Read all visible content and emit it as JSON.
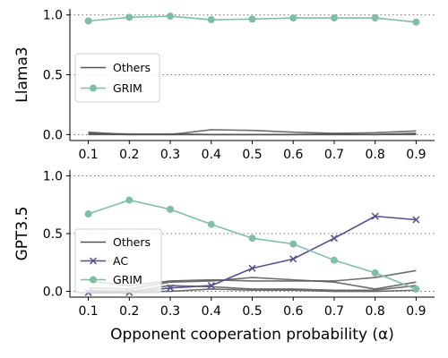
{
  "chart_data": [
    {
      "type": "line",
      "ylabel": "Llama3",
      "xlabel": "",
      "x": [
        0.1,
        0.2,
        0.3,
        0.4,
        0.5,
        0.6,
        0.7,
        0.8,
        0.9
      ],
      "x_tick_labels": [
        "0.1",
        "0.2",
        "0.3",
        "0.4",
        "0.5",
        "0.6",
        "0.7",
        "0.8",
        "0.9"
      ],
      "ylim": [
        -0.05,
        1.05
      ],
      "y_ticks": [
        0.0,
        0.5,
        1.0
      ],
      "y_tick_labels": [
        "0.0",
        "0.5",
        "1.0"
      ],
      "grid": "horizontal dotted at y ticks",
      "legend": {
        "placement": "center-left",
        "entries": [
          "Others",
          "GRIM"
        ]
      },
      "series": [
        {
          "name": "Others",
          "group": "Others",
          "color": "#555555",
          "values": [
            0.02,
            0.0,
            0.0,
            0.04,
            0.035,
            0.02,
            0.01,
            0.015,
            0.03
          ]
        },
        {
          "group": "Others",
          "color": "#555555",
          "values": [
            0.01,
            0.005,
            0.0,
            0.0,
            0.0,
            0.0,
            0.0,
            0.0,
            0.005
          ]
        },
        {
          "group": "Others",
          "color": "#555555",
          "values": [
            0.005,
            0.0,
            0.005,
            0.0,
            0.0,
            0.0,
            0.005,
            0.0,
            0.01
          ]
        },
        {
          "group": "Others",
          "color": "#555555",
          "values": [
            0.0,
            0.0,
            0.0,
            0.0,
            0.0,
            0.0,
            0.0,
            0.0,
            0.0
          ]
        },
        {
          "name": "GRIM",
          "color": "#7fbfa5",
          "marker": "circle",
          "values": [
            0.95,
            0.98,
            0.99,
            0.96,
            0.965,
            0.975,
            0.975,
            0.975,
            0.94
          ]
        }
      ]
    },
    {
      "type": "line",
      "ylabel": "GPT3.5",
      "xlabel": "Opponent cooperation probability (α)",
      "x": [
        0.1,
        0.2,
        0.3,
        0.4,
        0.5,
        0.6,
        0.7,
        0.8,
        0.9
      ],
      "x_tick_labels": [
        "0.1",
        "0.2",
        "0.3",
        "0.4",
        "0.5",
        "0.6",
        "0.7",
        "0.8",
        "0.9"
      ],
      "ylim": [
        -0.05,
        1.05
      ],
      "y_ticks": [
        0.0,
        0.5,
        1.0
      ],
      "y_tick_labels": [
        "0.0",
        "0.5",
        "1.0"
      ],
      "grid": "horizontal dotted at y ticks",
      "legend": {
        "placement": "lower-left",
        "entries": [
          "Others",
          "AC",
          "GRIM"
        ]
      },
      "series": [
        {
          "name": "Others",
          "group": "Others",
          "color": "#555555",
          "values": [
            0.09,
            0.05,
            0.09,
            0.1,
            0.09,
            0.09,
            0.09,
            0.12,
            0.18
          ]
        },
        {
          "group": "Others",
          "color": "#555555",
          "values": [
            0.03,
            0.02,
            0.08,
            0.09,
            0.12,
            0.1,
            0.08,
            0.02,
            0.08
          ]
        },
        {
          "group": "Others",
          "color": "#555555",
          "values": [
            0.0,
            0.0,
            0.05,
            0.04,
            0.02,
            0.02,
            0.01,
            0.01,
            0.05
          ]
        },
        {
          "group": "Others",
          "color": "#555555",
          "values": [
            0.01,
            0.0,
            0.0,
            0.02,
            0.01,
            0.01,
            0.0,
            0.0,
            0.01
          ]
        },
        {
          "name": "AC",
          "color": "#55508f",
          "marker": "x",
          "values": [
            -0.01,
            -0.01,
            0.03,
            0.05,
            0.2,
            0.28,
            0.46,
            0.65,
            0.62
          ]
        },
        {
          "name": "GRIM",
          "color": "#7fbfa5",
          "marker": "circle",
          "values": [
            0.67,
            0.79,
            0.71,
            0.58,
            0.46,
            0.41,
            0.27,
            0.16,
            0.02
          ]
        }
      ]
    }
  ]
}
